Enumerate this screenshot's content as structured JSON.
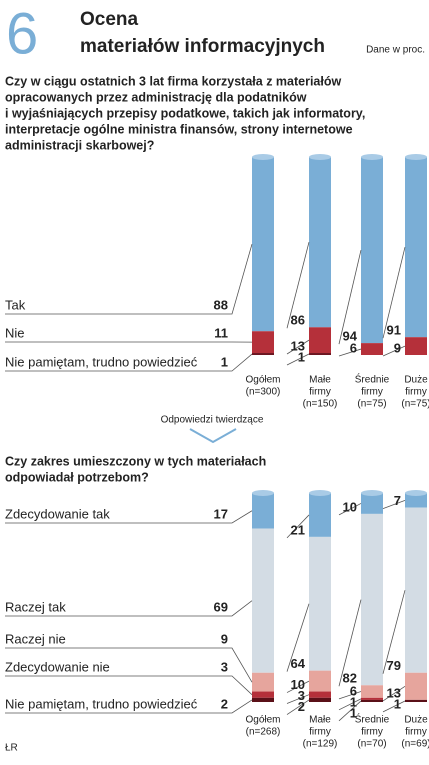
{
  "header": {
    "number": "6",
    "title": [
      "Ocena",
      "materiałów informacyjnych"
    ],
    "note": "Dane w proc."
  },
  "annotation": "Odpowiedzi twierdzące",
  "footer": "ŁR",
  "chart_data": [
    {
      "type": "stacked-bar",
      "title": [
        "Czy w ciągu ostatnich 3 lat firma korzystała z materiałów",
        "opracowanych przez administrację dla podatników",
        "i wyjaśniających przepisy podatkowe, takich jak informatory,",
        "interpretacje ogólne ministra finansów, strony internetowe",
        "administracji skarbowej?"
      ],
      "categories": [
        [
          "Ogółem",
          "(n=300)"
        ],
        [
          "Małe",
          "firmy",
          "(n=150)"
        ],
        [
          "Średnie",
          "firmy",
          "(n=75)"
        ],
        [
          "Duże",
          "firmy",
          "(n=75)"
        ]
      ],
      "ylim": [
        0,
        100
      ],
      "series": [
        {
          "name": "Tak",
          "color": "#7aaed6",
          "values": [
            88,
            86,
            94,
            91
          ]
        },
        {
          "name": "Nie",
          "color": "#b5303a",
          "values": [
            11,
            13,
            6,
            9
          ]
        },
        {
          "name": "Nie pamiętam, trudno powiedzieć",
          "color": "#6b1520",
          "values": [
            1,
            1,
            0,
            0
          ]
        }
      ]
    },
    {
      "type": "stacked-bar",
      "title": [
        "Czy zakres umieszczony w tych materiałach",
        "odpowiadał potrzebom?"
      ],
      "categories": [
        [
          "Ogółem",
          "(n=268)"
        ],
        [
          "Małe",
          "firmy",
          "(n=129)"
        ],
        [
          "Średnie",
          "firmy",
          "(n=70)"
        ],
        [
          "Duże",
          "firmy",
          "(n=69)"
        ]
      ],
      "ylim": [
        0,
        100
      ],
      "series": [
        {
          "name": "Zdecydowanie tak",
          "color": "#7aaed6",
          "values": [
            17,
            21,
            10,
            7
          ]
        },
        {
          "name": "Raczej tak",
          "color": "#d3dce4",
          "values": [
            69,
            64,
            82,
            79
          ]
        },
        {
          "name": "Raczej nie",
          "color": "#e6a59d",
          "values": [
            9,
            10,
            6,
            13
          ]
        },
        {
          "name": "Zdecydowanie nie",
          "color": "#b5303a",
          "values": [
            3,
            3,
            1,
            0
          ]
        },
        {
          "name": "Nie pamiętam, trudno powiedzieć",
          "color": "#5a1018",
          "values": [
            2,
            2,
            1,
            1
          ]
        }
      ]
    }
  ]
}
